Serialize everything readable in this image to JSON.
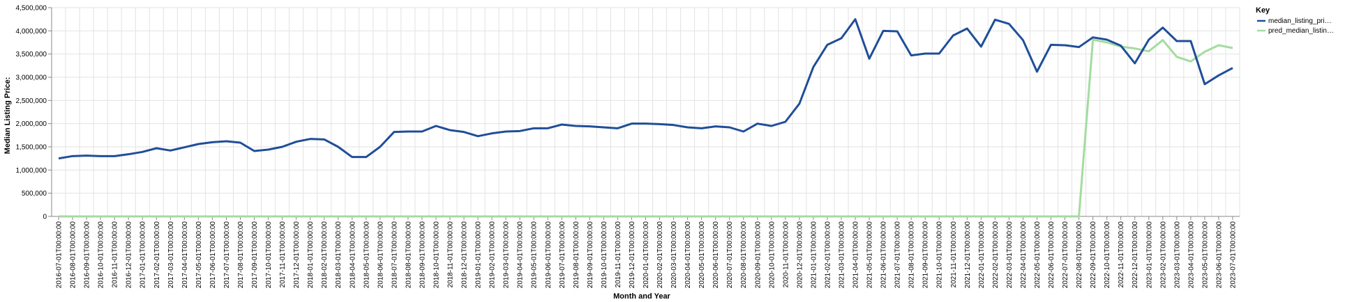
{
  "chart_data": {
    "type": "line",
    "xlabel": "Month and Year",
    "ylabel": "Median Listing Price:",
    "ylim": [
      0,
      4500000
    ],
    "yticks": [
      "0",
      "500,000",
      "1,000,000",
      "1,500,000",
      "2,000,000",
      "2,500,000",
      "3,000,000",
      "3,500,000",
      "4,000,000",
      "4,500,000"
    ],
    "grid": true,
    "legend": {
      "title": "Key",
      "position": "right",
      "entries": [
        {
          "label": "median_listing_pri…",
          "color": "#1f4e99"
        },
        {
          "label": "pred_median_listin…",
          "color": "#a3dca0"
        }
      ]
    },
    "categories": [
      "2016-07-01T00:00:00",
      "2016-08-01T00:00:00",
      "2016-09-01T00:00:00",
      "2016-10-01T00:00:00",
      "2016-11-01T00:00:00",
      "2016-12-01T00:00:00",
      "2017-01-01T00:00:00",
      "2017-02-01T00:00:00",
      "2017-03-01T00:00:00",
      "2017-04-01T00:00:00",
      "2017-05-01T00:00:00",
      "2017-06-01T00:00:00",
      "2017-07-01T00:00:00",
      "2017-08-01T00:00:00",
      "2017-09-01T00:00:00",
      "2017-10-01T00:00:00",
      "2017-11-01T00:00:00",
      "2017-12-01T00:00:00",
      "2018-01-01T00:00:00",
      "2018-02-01T00:00:00",
      "2018-03-01T00:00:00",
      "2018-04-01T00:00:00",
      "2018-05-01T00:00:00",
      "2018-06-01T00:00:00",
      "2018-07-01T00:00:00",
      "2018-08-01T00:00:00",
      "2018-09-01T00:00:00",
      "2018-10-01T00:00:00",
      "2018-11-01T00:00:00",
      "2018-12-01T00:00:00",
      "2019-01-01T00:00:00",
      "2019-02-01T00:00:00",
      "2019-03-01T00:00:00",
      "2019-04-01T00:00:00",
      "2019-05-01T00:00:00",
      "2019-06-01T00:00:00",
      "2019-07-01T00:00:00",
      "2019-08-01T00:00:00",
      "2019-09-01T00:00:00",
      "2019-10-01T00:00:00",
      "2019-11-01T00:00:00",
      "2019-12-01T00:00:00",
      "2020-01-01T00:00:00",
      "2020-02-01T00:00:00",
      "2020-03-01T00:00:00",
      "2020-04-01T00:00:00",
      "2020-05-01T00:00:00",
      "2020-06-01T00:00:00",
      "2020-07-01T00:00:00",
      "2020-08-01T00:00:00",
      "2020-09-01T00:00:00",
      "2020-10-01T00:00:00",
      "2020-11-01T00:00:00",
      "2020-12-01T00:00:00",
      "2021-01-01T00:00:00",
      "2021-02-01T00:00:00",
      "2021-03-01T00:00:00",
      "2021-04-01T00:00:00",
      "2021-05-01T00:00:00",
      "2021-06-01T00:00:00",
      "2021-07-01T00:00:00",
      "2021-08-01T00:00:00",
      "2021-09-01T00:00:00",
      "2021-10-01T00:00:00",
      "2021-11-01T00:00:00",
      "2021-12-01T00:00:00",
      "2022-01-01T00:00:00",
      "2022-02-01T00:00:00",
      "2022-03-01T00:00:00",
      "2022-04-01T00:00:00",
      "2022-05-01T00:00:00",
      "2022-06-01T00:00:00",
      "2022-07-01T00:00:00",
      "2022-08-01T00:00:00",
      "2022-09-01T00:00:00",
      "2022-10-01T00:00:00",
      "2022-11-01T00:00:00",
      "2022-12-01T00:00:00",
      "2023-01-01T00:00:00",
      "2023-02-01T00:00:00",
      "2023-03-01T00:00:00",
      "2023-04-01T00:00:00",
      "2023-05-01T00:00:00",
      "2023-06-01T00:00:00",
      "2023-07-01T00:00:00"
    ],
    "series": [
      {
        "name": "median_listing_pri…",
        "color": "#1f4e99",
        "values": [
          1250000,
          1300000,
          1310000,
          1300000,
          1300000,
          1340000,
          1390000,
          1470000,
          1420000,
          1490000,
          1560000,
          1600000,
          1620000,
          1590000,
          1410000,
          1440000,
          1500000,
          1610000,
          1670000,
          1660000,
          1500000,
          1280000,
          1280000,
          1500000,
          1820000,
          1830000,
          1830000,
          1950000,
          1860000,
          1820000,
          1730000,
          1790000,
          1830000,
          1840000,
          1900000,
          1900000,
          1980000,
          1950000,
          1940000,
          1920000,
          1900000,
          2000000,
          2000000,
          1990000,
          1970000,
          1920000,
          1900000,
          1940000,
          1920000,
          1830000,
          2000000,
          1950000,
          2040000,
          2430000,
          3220000,
          3700000,
          3840000,
          4250000,
          3400000,
          4000000,
          3990000,
          3470000,
          3510000,
          3510000,
          3900000,
          4050000,
          3660000,
          4240000,
          4150000,
          3800000,
          3120000,
          3700000,
          3690000,
          3650000,
          3860000,
          3810000,
          3680000,
          3300000,
          3810000,
          4070000,
          3780000,
          3780000,
          2850000,
          3040000,
          3200000
        ]
      },
      {
        "name": "pred_median_listin…",
        "color": "#a3dca0",
        "values": [
          0,
          0,
          0,
          0,
          0,
          0,
          0,
          0,
          0,
          0,
          0,
          0,
          0,
          0,
          0,
          0,
          0,
          0,
          0,
          0,
          0,
          0,
          0,
          0,
          0,
          0,
          0,
          0,
          0,
          0,
          0,
          0,
          0,
          0,
          0,
          0,
          0,
          0,
          0,
          0,
          0,
          0,
          0,
          0,
          0,
          0,
          0,
          0,
          0,
          0,
          0,
          0,
          0,
          0,
          0,
          0,
          0,
          0,
          0,
          0,
          0,
          0,
          0,
          0,
          0,
          0,
          0,
          0,
          0,
          0,
          0,
          0,
          0,
          0,
          3810000,
          3750000,
          3660000,
          3620000,
          3560000,
          3800000,
          3440000,
          3340000,
          3550000,
          3690000,
          3630000
        ]
      }
    ]
  }
}
